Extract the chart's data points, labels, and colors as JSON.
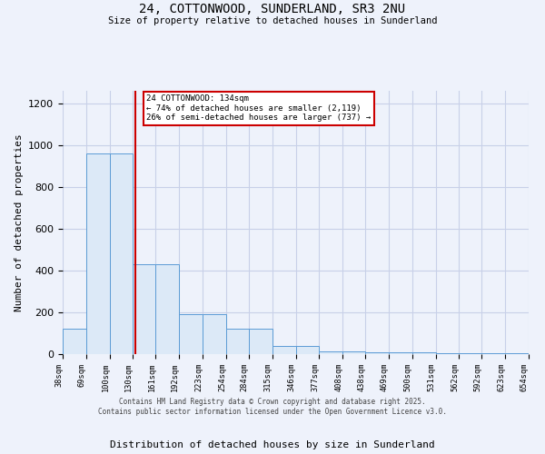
{
  "title_line1": "24, COTTONWOOD, SUNDERLAND, SR3 2NU",
  "title_line2": "Size of property relative to detached houses in Sunderland",
  "xlabel": "Distribution of detached houses by size in Sunderland",
  "ylabel": "Number of detached properties",
  "bin_edges": [
    38,
    69,
    100,
    130,
    161,
    192,
    223,
    254,
    284,
    315,
    346,
    377,
    408,
    438,
    469,
    500,
    531,
    562,
    592,
    623,
    654
  ],
  "bar_heights": [
    120,
    960,
    960,
    430,
    430,
    190,
    190,
    120,
    120,
    40,
    40,
    15,
    15,
    10,
    10,
    10,
    5,
    5,
    5,
    5
  ],
  "bar_color": "#dce9f7",
  "bar_edge_color": "#5b9bd5",
  "subject_size": 134,
  "subject_label": "24 COTTONWOOD: 134sqm",
  "annotation_line2": "← 74% of detached houses are smaller (2,119)",
  "annotation_line3": "26% of semi-detached houses are larger (737) →",
  "vline_color": "#cc0000",
  "annotation_box_color": "#cc0000",
  "background_color": "#eef2fb",
  "grid_color": "#c8d0e8",
  "ylim": [
    0,
    1260
  ],
  "yticks": [
    0,
    200,
    400,
    600,
    800,
    1000,
    1200
  ],
  "footer_line1": "Contains HM Land Registry data © Crown copyright and database right 2025.",
  "footer_line2": "Contains public sector information licensed under the Open Government Licence v3.0."
}
